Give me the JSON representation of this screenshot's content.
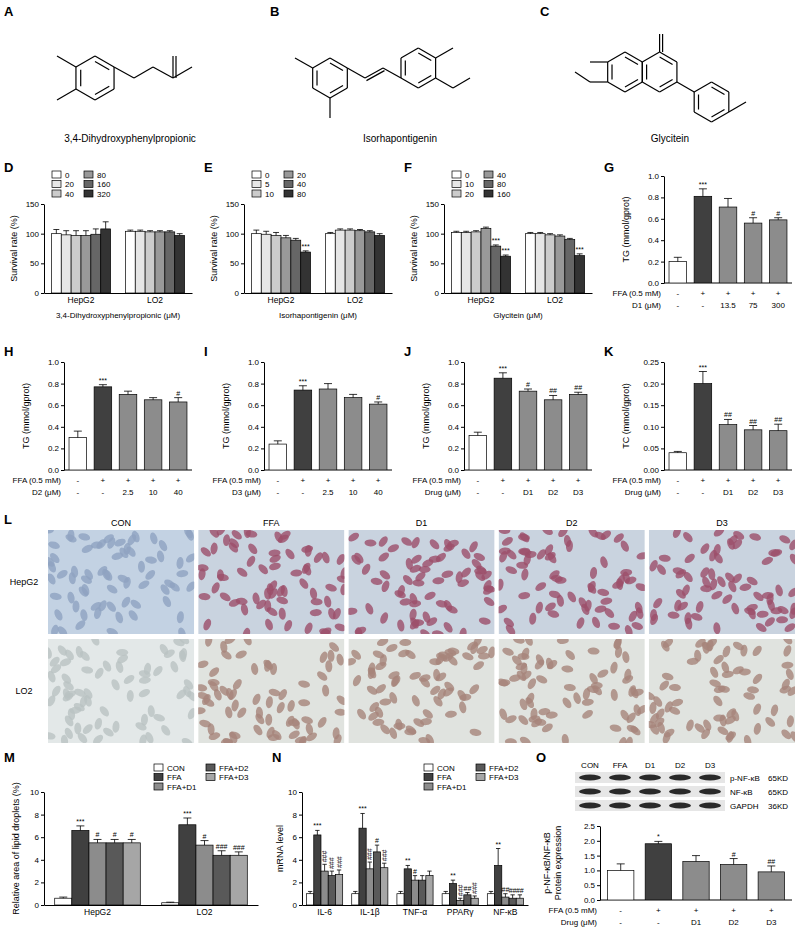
{
  "structures": [
    {
      "panel": "A",
      "name": "3,4-Dihydroxyphenylpropionic"
    },
    {
      "panel": "B",
      "name": "Isorhapontigenin"
    },
    {
      "panel": "C",
      "name": "Glycitein"
    }
  ],
  "chart_data": [
    {
      "type": "grouped_bar",
      "panel": "D",
      "y_label": "Survival rate (%)",
      "x_label": "3,4-Dihydroxyphenylpropionic (μM)",
      "ylim": [
        0,
        150
      ],
      "yticks": [
        0,
        50,
        100,
        150
      ],
      "categories": [
        "HepG2",
        "LO2"
      ],
      "legend": "top-left",
      "series": [
        {
          "name": "0",
          "color": "#ffffff",
          "values": [
            100,
            104
          ],
          "errors": [
            7,
            2
          ]
        },
        {
          "name": "20",
          "color": "#e6e6e6",
          "values": [
            98,
            104
          ],
          "errors": [
            7,
            2
          ]
        },
        {
          "name": "40",
          "color": "#cccccc",
          "values": [
            97,
            103
          ],
          "errors": [
            8,
            2
          ]
        },
        {
          "name": "80",
          "color": "#999999",
          "values": [
            97,
            103
          ],
          "errors": [
            8,
            2
          ]
        },
        {
          "name": "160",
          "color": "#666666",
          "values": [
            99,
            103
          ],
          "errors": [
            9,
            2
          ]
        },
        {
          "name": "320",
          "color": "#333333",
          "values": [
            108,
            97
          ],
          "errors": [
            12,
            3
          ]
        }
      ]
    },
    {
      "type": "grouped_bar",
      "panel": "E",
      "y_label": "Survival rate (%)",
      "x_label": "Isorhapontigenin (μM)",
      "ylim": [
        0,
        150
      ],
      "yticks": [
        0,
        50,
        100,
        150
      ],
      "categories": [
        "HepG2",
        "LO2"
      ],
      "legend": "top-left",
      "series": [
        {
          "name": "0",
          "color": "#ffffff",
          "values": [
            100,
            100
          ],
          "errors": [
            6,
            2
          ]
        },
        {
          "name": "5",
          "color": "#e6e6e6",
          "values": [
            99,
            106
          ],
          "errors": [
            5,
            2
          ]
        },
        {
          "name": "10",
          "color": "#cccccc",
          "values": [
            97,
            106
          ],
          "errors": [
            5,
            2
          ]
        },
        {
          "name": "20",
          "color": "#999999",
          "values": [
            93,
            105
          ],
          "errors": [
            4,
            2
          ]
        },
        {
          "name": "40",
          "color": "#666666",
          "values": [
            89,
            103
          ],
          "errors": [
            3,
            2
          ]
        },
        {
          "name": "80",
          "color": "#333333",
          "values": [
            69,
            97
          ],
          "errors": [
            2,
            3
          ],
          "sig": [
            "***",
            null
          ]
        }
      ]
    },
    {
      "type": "grouped_bar",
      "panel": "F",
      "y_label": "Survival rate (%)",
      "x_label": "Glycitein (μM)",
      "ylim": [
        0,
        150
      ],
      "yticks": [
        0,
        50,
        100,
        150
      ],
      "categories": [
        "HepG2",
        "LO2"
      ],
      "legend": "top-left",
      "series": [
        {
          "name": "0",
          "color": "#ffffff",
          "values": [
            102,
            100
          ],
          "errors": [
            2,
            2
          ]
        },
        {
          "name": "10",
          "color": "#e6e6e6",
          "values": [
            102,
            100
          ],
          "errors": [
            2,
            2
          ]
        },
        {
          "name": "20",
          "color": "#cccccc",
          "values": [
            103,
            98
          ],
          "errors": [
            2,
            2
          ]
        },
        {
          "name": "40",
          "color": "#999999",
          "values": [
            109,
            96
          ],
          "errors": [
            2,
            2
          ]
        },
        {
          "name": "80",
          "color": "#666666",
          "values": [
            79,
            90
          ],
          "errors": [
            2,
            2
          ],
          "sig": [
            "***",
            null
          ]
        },
        {
          "name": "160",
          "color": "#333333",
          "values": [
            62,
            63
          ],
          "errors": [
            2,
            3
          ],
          "sig": [
            "***",
            "***"
          ]
        }
      ]
    },
    {
      "type": "bar",
      "panel": "G",
      "y_label": "TG (mmol/gprot)",
      "ylim": [
        0,
        1
      ],
      "yticks": [
        {
          "value": 0,
          "label": "0.0"
        },
        0.2,
        0.4,
        0.6,
        0.8,
        {
          "value": 1,
          "label": "1.0"
        }
      ],
      "values": [
        0.2,
        0.81,
        0.71,
        0.56,
        0.59
      ],
      "errors": [
        0.04,
        0.07,
        0.08,
        0.05,
        0.02
      ],
      "sig": [
        null,
        "***",
        null,
        "#",
        "#"
      ],
      "colors": [
        "#ffffff",
        "#404040",
        "#8c8c8c",
        "#8c8c8c",
        "#8c8c8c"
      ],
      "conditions": [
        {
          "label": "FFA (0.5 mM)",
          "values": [
            "-",
            "+",
            "+",
            "+",
            "+"
          ]
        },
        {
          "label": "D1 (μM)",
          "values": [
            "-",
            "-",
            "13.5",
            "75",
            "300"
          ]
        }
      ]
    },
    {
      "type": "bar",
      "panel": "H",
      "y_label": "TG (mmol/gprot)",
      "ylim": [
        0,
        1
      ],
      "yticks": [
        {
          "value": 0,
          "label": "0.0"
        },
        0.2,
        0.4,
        0.6,
        0.8,
        {
          "value": 1,
          "label": "1.0"
        }
      ],
      "values": [
        0.3,
        0.77,
        0.7,
        0.65,
        0.63
      ],
      "errors": [
        0.06,
        0.02,
        0.03,
        0.02,
        0.04
      ],
      "sig": [
        null,
        "***",
        null,
        null,
        "#"
      ],
      "colors": [
        "#ffffff",
        "#404040",
        "#8c8c8c",
        "#8c8c8c",
        "#8c8c8c"
      ],
      "conditions": [
        {
          "label": "FFA (0.5 mM)",
          "values": [
            "-",
            "+",
            "+",
            "+",
            "+"
          ]
        },
        {
          "label": "D2 (μM)",
          "values": [
            "-",
            "-",
            "2.5",
            "10",
            "40"
          ]
        }
      ]
    },
    {
      "type": "bar",
      "panel": "I",
      "y_label": "TG (mmol/gprot)",
      "ylim": [
        0,
        1
      ],
      "yticks": [
        {
          "value": 0,
          "label": "0.0"
        },
        0.2,
        0.4,
        0.6,
        0.8,
        {
          "value": 1,
          "label": "1.0"
        }
      ],
      "values": [
        0.24,
        0.74,
        0.75,
        0.67,
        0.61
      ],
      "errors": [
        0.03,
        0.04,
        0.05,
        0.03,
        0.02
      ],
      "sig": [
        null,
        "***",
        null,
        null,
        "#"
      ],
      "colors": [
        "#ffffff",
        "#404040",
        "#8c8c8c",
        "#8c8c8c",
        "#8c8c8c"
      ],
      "conditions": [
        {
          "label": "FFA (0.5 mM)",
          "values": [
            "-",
            "+",
            "+",
            "+",
            "+"
          ]
        },
        {
          "label": "D3 (μM)",
          "values": [
            "-",
            "-",
            "2.5",
            "10",
            "40"
          ]
        }
      ]
    },
    {
      "type": "bar",
      "panel": "J",
      "y_label": "TG (mmol/gprot)",
      "ylim": [
        0,
        1
      ],
      "yticks": [
        {
          "value": 0,
          "label": "0.0"
        },
        0.2,
        0.4,
        0.6,
        0.8,
        {
          "value": 1,
          "label": "1.0"
        }
      ],
      "values": [
        0.32,
        0.85,
        0.73,
        0.65,
        0.7
      ],
      "errors": [
        0.03,
        0.05,
        0.02,
        0.04,
        0.02
      ],
      "sig": [
        null,
        "***",
        "#",
        "##",
        "##"
      ],
      "colors": [
        "#ffffff",
        "#404040",
        "#8c8c8c",
        "#8c8c8c",
        "#8c8c8c"
      ],
      "conditions": [
        {
          "label": "FFA (0.5 mM)",
          "values": [
            "-",
            "+",
            "+",
            "+",
            "+"
          ]
        },
        {
          "label": "Drug (μM)",
          "values": [
            "-",
            "-",
            "D1",
            "D2",
            "D3"
          ]
        }
      ]
    },
    {
      "type": "bar",
      "panel": "K",
      "y_label": "TC (mmol/gprot)",
      "ylim": [
        0,
        0.25
      ],
      "yticks": [
        {
          "value": 0,
          "label": "0.00"
        },
        {
          "value": 0.05,
          "label": "0.05"
        },
        {
          "value": 0.1,
          "label": "0.10"
        },
        {
          "value": 0.15,
          "label": "0.15"
        },
        {
          "value": 0.2,
          "label": "0.20"
        },
        {
          "value": 0.25,
          "label": "0.25"
        }
      ],
      "values": [
        0.04,
        0.2,
        0.105,
        0.093,
        0.091
      ],
      "errors": [
        0.003,
        0.028,
        0.012,
        0.01,
        0.015
      ],
      "sig": [
        null,
        "***",
        "##",
        "##",
        "##"
      ],
      "colors": [
        "#ffffff",
        "#404040",
        "#8c8c8c",
        "#8c8c8c",
        "#8c8c8c"
      ],
      "conditions": [
        {
          "label": "FFA (0.5 mM)",
          "values": [
            "-",
            "+",
            "+",
            "+",
            "+"
          ]
        },
        {
          "label": "Drug (μM)",
          "values": [
            "-",
            "-",
            "D1",
            "D2",
            "D3"
          ]
        }
      ]
    },
    {
      "type": "grouped_bar",
      "panel": "M",
      "y_label": "Relative area of lipid droplets (%)",
      "ylim": [
        0,
        10
      ],
      "yticks": [
        0,
        2,
        4,
        6,
        8,
        10
      ],
      "categories": [
        "HepG2",
        "LO2"
      ],
      "legend": "top-right",
      "series": [
        {
          "name": "CON",
          "color": "#ffffff",
          "values": [
            0.6,
            0.2
          ],
          "errors": [
            0.1,
            0.05
          ]
        },
        {
          "name": "FFA",
          "color": "#404040",
          "values": [
            6.6,
            7.1
          ],
          "errors": [
            0.4,
            0.6
          ],
          "sig": [
            "***",
            "***"
          ]
        },
        {
          "name": "FFA+D1",
          "color": "#8c8c8c",
          "values": [
            5.5,
            5.3
          ],
          "errors": [
            0.3,
            0.4
          ],
          "sig": [
            "#",
            "#"
          ]
        },
        {
          "name": "FFA+D2",
          "color": "#595959",
          "values": [
            5.5,
            4.4
          ],
          "errors": [
            0.3,
            0.4
          ],
          "sig": [
            "#",
            "###"
          ]
        },
        {
          "name": "FFA+D3",
          "color": "#a6a6a6",
          "values": [
            5.5,
            4.4
          ],
          "errors": [
            0.3,
            0.3
          ],
          "sig": [
            "#",
            "###"
          ]
        }
      ]
    },
    {
      "type": "grouped_bar",
      "panel": "N",
      "y_label": "mRNA level",
      "ylim": [
        0,
        10
      ],
      "yticks": [
        0,
        2,
        4,
        6,
        8,
        10
      ],
      "categories": [
        "IL-6",
        "IL-1β",
        "TNF-α",
        "PPARγ",
        "NF-κB"
      ],
      "legend": "top-right",
      "series": [
        {
          "name": "CON",
          "color": "#ffffff",
          "values": [
            1,
            1,
            1,
            1,
            1
          ],
          "errors": [
            0.2,
            0.2,
            0.2,
            0.2,
            0.2
          ]
        },
        {
          "name": "FFA",
          "color": "#404040",
          "values": [
            6.2,
            6.8,
            3.2,
            1.9,
            3.5
          ],
          "errors": [
            0.4,
            1.3,
            0.3,
            0.3,
            1.5
          ],
          "sig": [
            "***",
            "***",
            "**",
            "**",
            "**"
          ]
        },
        {
          "name": "FFA+D1",
          "color": "#8c8c8c",
          "values": [
            3,
            3.2,
            2.2,
            0.4,
            0.7
          ],
          "errors": [
            0.6,
            0.6,
            0.4,
            0.2,
            0.3
          ],
          "sig": [
            "###",
            "###",
            "#",
            "###",
            "##"
          ]
        },
        {
          "name": "FFA+D2",
          "color": "#595959",
          "values": [
            2.6,
            4.7,
            2.2,
            0.9,
            0.6
          ],
          "errors": [
            0.4,
            0.6,
            0.4,
            0.2,
            0.3
          ],
          "sig": [
            "###",
            "#",
            null,
            "##",
            "##"
          ]
        },
        {
          "name": "FFA+D3",
          "color": "#a6a6a6",
          "values": [
            2.7,
            3.3,
            2.6,
            0.6,
            0.6
          ],
          "errors": [
            0.4,
            0.4,
            0.4,
            0.2,
            0.3
          ],
          "sig": [
            "###",
            "###",
            null,
            "###",
            "##"
          ]
        }
      ]
    },
    {
      "type": "bar",
      "y_label": "p-NF-κB/NF-κB Protein expression",
      "ylim": [
        0,
        2.5
      ],
      "yticks": [
        {
          "value": 0,
          "label": "0.0"
        },
        0.5,
        {
          "value": 1,
          "label": "1.0"
        },
        1.5,
        {
          "value": 2,
          "label": "2.0"
        },
        2.5
      ],
      "values": [
        1,
        1.9,
        1.3,
        1.2,
        0.95
      ],
      "errors": [
        0.22,
        0.08,
        0.2,
        0.2,
        0.2
      ],
      "sig": [
        null,
        "*",
        null,
        "#",
        "##"
      ],
      "colors": [
        "#ffffff",
        "#404040",
        "#8c8c8c",
        "#8c8c8c",
        "#8c8c8c"
      ],
      "conditions": [
        {
          "label": "FFA (0.5 mM)",
          "values": [
            "-",
            "+",
            "+",
            "+",
            "+"
          ]
        },
        {
          "label": "Drug (μM)",
          "values": [
            "-",
            "-",
            "D1",
            "D2",
            "D3"
          ]
        }
      ]
    }
  ],
  "micrographs": {
    "panel": "L",
    "columns": [
      "CON",
      "FFA",
      "D1",
      "D2",
      "D3"
    ],
    "rows": [
      "HepG2",
      "LO2"
    ]
  },
  "blot": {
    "panel": "O",
    "lanes": [
      "CON",
      "FFA",
      "D1",
      "D2",
      "D3"
    ],
    "bands": [
      {
        "label": "p-NF-κB",
        "size": "65KD"
      },
      {
        "label": "NF-κB",
        "size": "65KD"
      },
      {
        "label": "GAPDH",
        "size": "36KD"
      }
    ]
  }
}
